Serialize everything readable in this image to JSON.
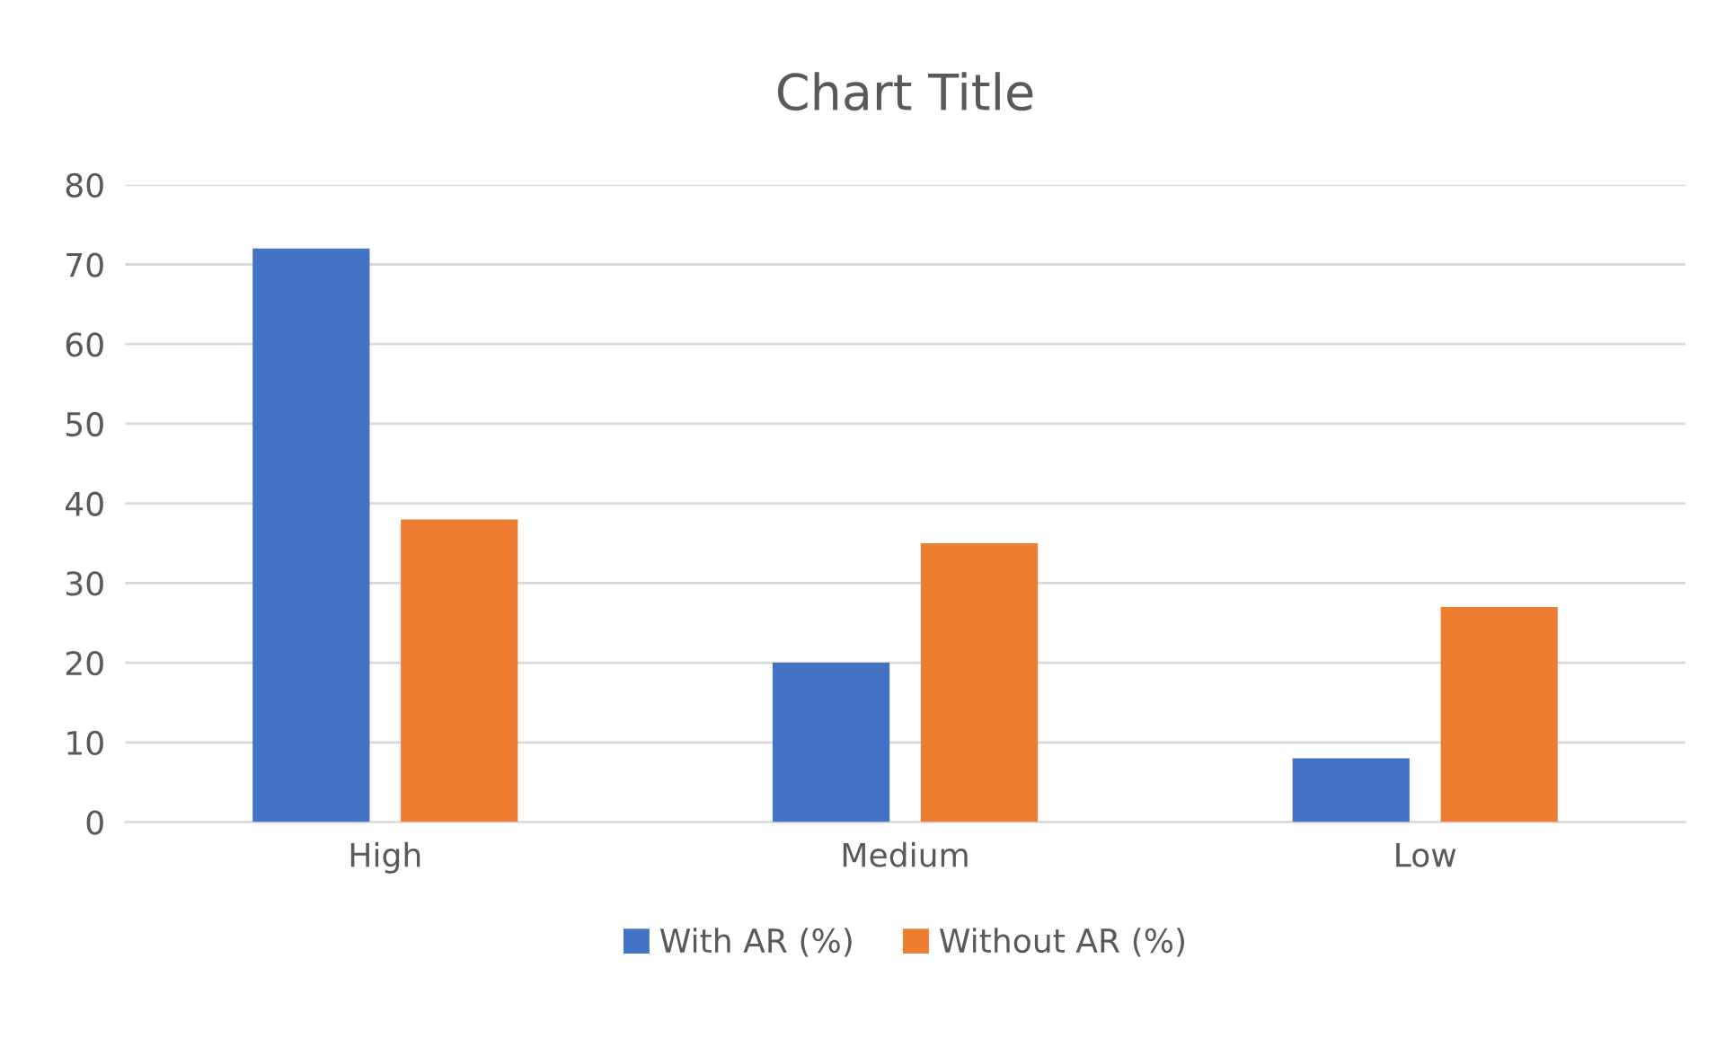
{
  "chart_data": {
    "type": "bar",
    "title": "Chart Title",
    "categories": [
      "High",
      "Medium",
      "Low"
    ],
    "series": [
      {
        "name": "With AR (%)",
        "color": "#4472c4",
        "values": [
          72,
          20,
          8
        ]
      },
      {
        "name": "Without AR (%)",
        "color": "#ed7d31",
        "values": [
          38,
          35,
          27
        ]
      }
    ],
    "ylim": [
      0,
      80
    ],
    "yticks": [
      0,
      10,
      20,
      30,
      40,
      50,
      60,
      70,
      80
    ],
    "grid": "y",
    "legend": "bottom"
  }
}
